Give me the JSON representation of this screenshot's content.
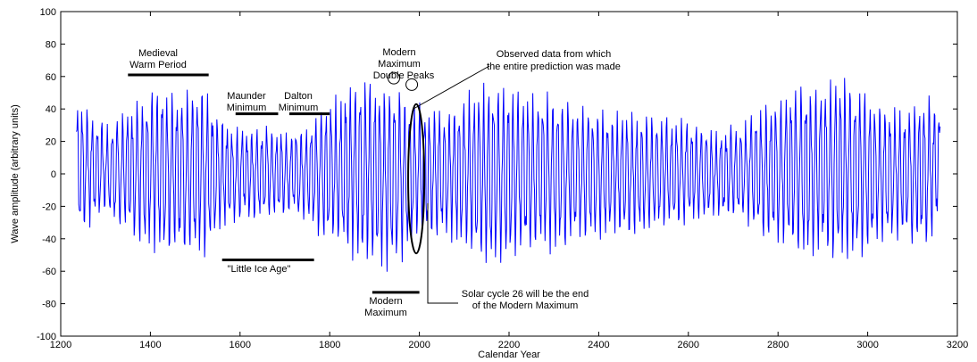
{
  "chart_data": {
    "type": "line",
    "title": "",
    "xlabel": "Calendar Year",
    "ylabel": "Wave amplitude (arbitrary units)",
    "xlim": [
      1200,
      3200
    ],
    "ylim": [
      -100,
      100
    ],
    "xticks": [
      1200,
      1400,
      1600,
      1800,
      2000,
      2200,
      2400,
      2600,
      2800,
      3000,
      3200
    ],
    "yticks": [
      100,
      80,
      60,
      40,
      20,
      0,
      -20,
      -40,
      -60,
      -80,
      -100
    ],
    "grid": false,
    "series_color": "#0000ff",
    "series": [
      {
        "x_start": 1235,
        "x_end": 3162,
        "approx_cycle_years": 11,
        "envelope_peaks": [
          [
            1235,
            48
          ],
          [
            1300,
            30
          ],
          [
            1360,
            42
          ],
          [
            1400,
            54
          ],
          [
            1440,
            54
          ],
          [
            1480,
            52
          ],
          [
            1520,
            54
          ],
          [
            1560,
            35
          ],
          [
            1600,
            28
          ],
          [
            1650,
            32
          ],
          [
            1700,
            25
          ],
          [
            1750,
            32
          ],
          [
            1800,
            45
          ],
          [
            1860,
            62
          ],
          [
            1920,
            58
          ],
          [
            1955,
            56
          ],
          [
            2000,
            44
          ],
          [
            2060,
            40
          ],
          [
            2100,
            50
          ],
          [
            2150,
            58
          ],
          [
            2200,
            55
          ],
          [
            2260,
            50
          ],
          [
            2300,
            52
          ],
          [
            2360,
            42
          ],
          [
            2420,
            40
          ],
          [
            2480,
            38
          ],
          [
            2540,
            36
          ],
          [
            2600,
            34
          ],
          [
            2660,
            28
          ],
          [
            2720,
            32
          ],
          [
            2800,
            48
          ],
          [
            2860,
            58
          ],
          [
            2900,
            55
          ],
          [
            2940,
            64
          ],
          [
            2980,
            56
          ],
          [
            3020,
            45
          ],
          [
            3080,
            40
          ],
          [
            3130,
            50
          ],
          [
            3162,
            45
          ]
        ],
        "envelope_troughs": [
          [
            1235,
            -40
          ],
          [
            1300,
            -25
          ],
          [
            1360,
            -40
          ],
          [
            1400,
            -50
          ],
          [
            1440,
            -52
          ],
          [
            1480,
            -50
          ],
          [
            1520,
            -52
          ],
          [
            1560,
            -35
          ],
          [
            1600,
            -28
          ],
          [
            1650,
            -30
          ],
          [
            1700,
            -25
          ],
          [
            1750,
            -32
          ],
          [
            1800,
            -45
          ],
          [
            1860,
            -55
          ],
          [
            1920,
            -62
          ],
          [
            1955,
            -58
          ],
          [
            2000,
            -40
          ],
          [
            2060,
            -40
          ],
          [
            2100,
            -48
          ],
          [
            2150,
            -60
          ],
          [
            2200,
            -55
          ],
          [
            2260,
            -48
          ],
          [
            2300,
            -50
          ],
          [
            2360,
            -42
          ],
          [
            2420,
            -40
          ],
          [
            2480,
            -38
          ],
          [
            2540,
            -36
          ],
          [
            2600,
            -32
          ],
          [
            2660,
            -28
          ],
          [
            2720,
            -30
          ],
          [
            2800,
            -45
          ],
          [
            2860,
            -55
          ],
          [
            2900,
            -50
          ],
          [
            2940,
            -57
          ],
          [
            2980,
            -54
          ],
          [
            3020,
            -45
          ],
          [
            3080,
            -40
          ],
          [
            3130,
            -48
          ],
          [
            3162,
            -30
          ]
        ]
      }
    ],
    "annotations": {
      "medieval": {
        "line1": "Medieval",
        "line2": "Warm Period",
        "bar_x": [
          1350,
          1530
        ],
        "bar_y": 61
      },
      "maunder": {
        "line1": "Maunder",
        "line2": "Minimum",
        "bar_x": [
          1590,
          1685
        ],
        "bar_y": 37
      },
      "dalton": {
        "line1": "Dalton",
        "line2": "Minimum",
        "bar_x": [
          1710,
          1800
        ],
        "bar_y": 37
      },
      "little_ice_age": {
        "text": "\"Little Ice Age\"",
        "bar_x": [
          1560,
          1765
        ],
        "bar_y": -53
      },
      "modern_max_bottom": {
        "line1": "Modern",
        "line2": "Maximum",
        "bar_x": [
          1895,
          2000
        ],
        "bar_y": -73
      },
      "double_peaks": {
        "line1": "Modern",
        "line2": "Maximum",
        "line3": "Double Peaks",
        "circle1": [
          1943,
          59
        ],
        "circle2": [
          1983,
          55
        ]
      },
      "observed": {
        "line1": "Observed data from which",
        "line2": "the entire prediction was made",
        "ellipse_center": [
          1993,
          -3
        ],
        "ellipse_rx_years": 18,
        "ellipse_ry": 46
      },
      "solar_cycle": {
        "line1": "Solar cycle 26 will be the end",
        "line2": "of the Modern Maximum"
      }
    }
  }
}
